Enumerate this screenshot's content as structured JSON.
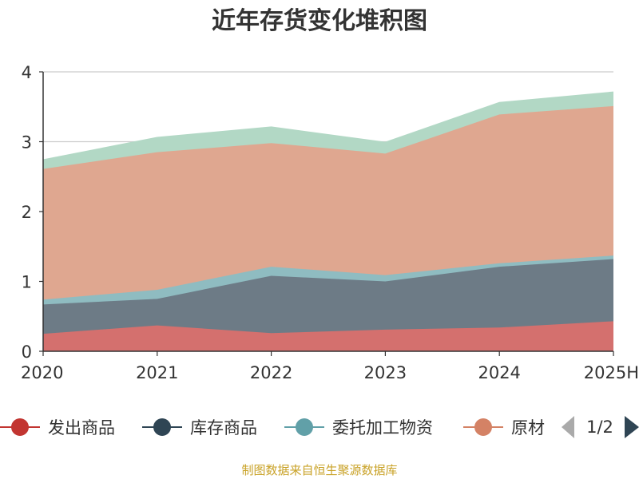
{
  "chart_data": {
    "type": "area",
    "stacked": true,
    "title": "近年存货变化堆积图",
    "ylabel": "",
    "xlabel": "",
    "categories": [
      "2020",
      "2021",
      "2022",
      "2023",
      "2024",
      "2025H"
    ],
    "ylim": [
      0,
      4
    ],
    "yticks": [
      "0",
      "1",
      "2",
      "3",
      "4"
    ],
    "grid": true,
    "legend_position": "bottom",
    "series": [
      {
        "name": "发出商品",
        "values": [
          0.25,
          0.37,
          0.26,
          0.31,
          0.34,
          0.43
        ],
        "color": "#c23531",
        "fill": "#d4706e"
      },
      {
        "name": "库存商品",
        "values": [
          0.42,
          0.38,
          0.82,
          0.69,
          0.87,
          0.89
        ],
        "color": "#2f4554",
        "fill": "#6d7b86"
      },
      {
        "name": "委托加工物资",
        "values": [
          0.07,
          0.13,
          0.13,
          0.09,
          0.05,
          0.05
        ],
        "color": "#61a0a8",
        "fill": "#8fbcc1"
      },
      {
        "name": "原材料",
        "values": [
          1.87,
          1.97,
          1.77,
          1.74,
          2.13,
          2.14
        ],
        "color": "#d48265",
        "fill": "#dfa790"
      },
      {
        "name": "",
        "values": [
          0.13,
          0.21,
          0.23,
          0.16,
          0.17,
          0.2
        ],
        "color": "#91c7ae",
        "fill": "#b2d8c5"
      }
    ]
  },
  "legend": {
    "visible_items": [
      "发出商品",
      "库存商品",
      "委托加工物资",
      "原材"
    ],
    "page_indicator": "1/2"
  },
  "footer": {
    "source_text": "制图数据来自恒生聚源数据库",
    "color": "#c9a227"
  }
}
